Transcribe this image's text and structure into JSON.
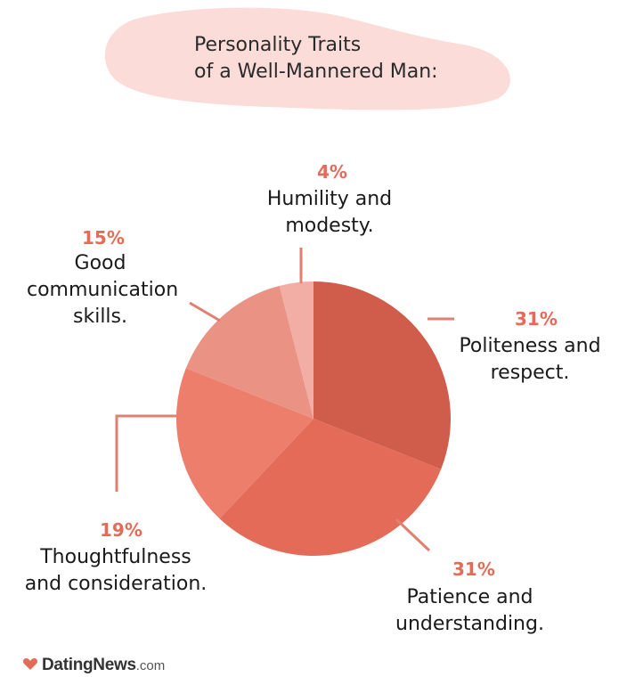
{
  "title": {
    "line1": "Personality Traits",
    "line2": "of a Well-Mannered Man:"
  },
  "chart_data": {
    "type": "pie",
    "title": "Personality Traits of a Well-Mannered Man:",
    "slices": [
      {
        "name": "Politeness and respect.",
        "label_line1": "Politeness and",
        "label_line2": "respect.",
        "value": 31,
        "pct_label": "31%",
        "color": "#d05c4b"
      },
      {
        "name": "Patience and understanding.",
        "label_line1": "Patience and",
        "label_line2": "understanding.",
        "value": 31,
        "pct_label": "31%",
        "color": "#e36b58"
      },
      {
        "name": "Thoughtfulness and consideration.",
        "label_line1": "Thoughtfulness",
        "label_line2": "and consideration.",
        "value": 19,
        "pct_label": "19%",
        "color": "#ee7e6c"
      },
      {
        "name": "Good communication skills.",
        "label_line1": "Good",
        "label_line2": "communication",
        "label_line3": "skills.",
        "value": 15,
        "pct_label": "15%",
        "color": "#ea9284"
      },
      {
        "name": "Humility and modesty.",
        "label_line1": "Humility and",
        "label_line2": "modesty.",
        "value": 4,
        "pct_label": "4%",
        "color": "#f2aea5"
      }
    ]
  },
  "colors": {
    "title_bubble": "#fbdcd8",
    "pct_text": "#e36b58",
    "leader_line": "#e08070",
    "logo_heart": "#e36b58"
  },
  "logo": {
    "name": "DatingNews",
    "tld": ".com"
  }
}
